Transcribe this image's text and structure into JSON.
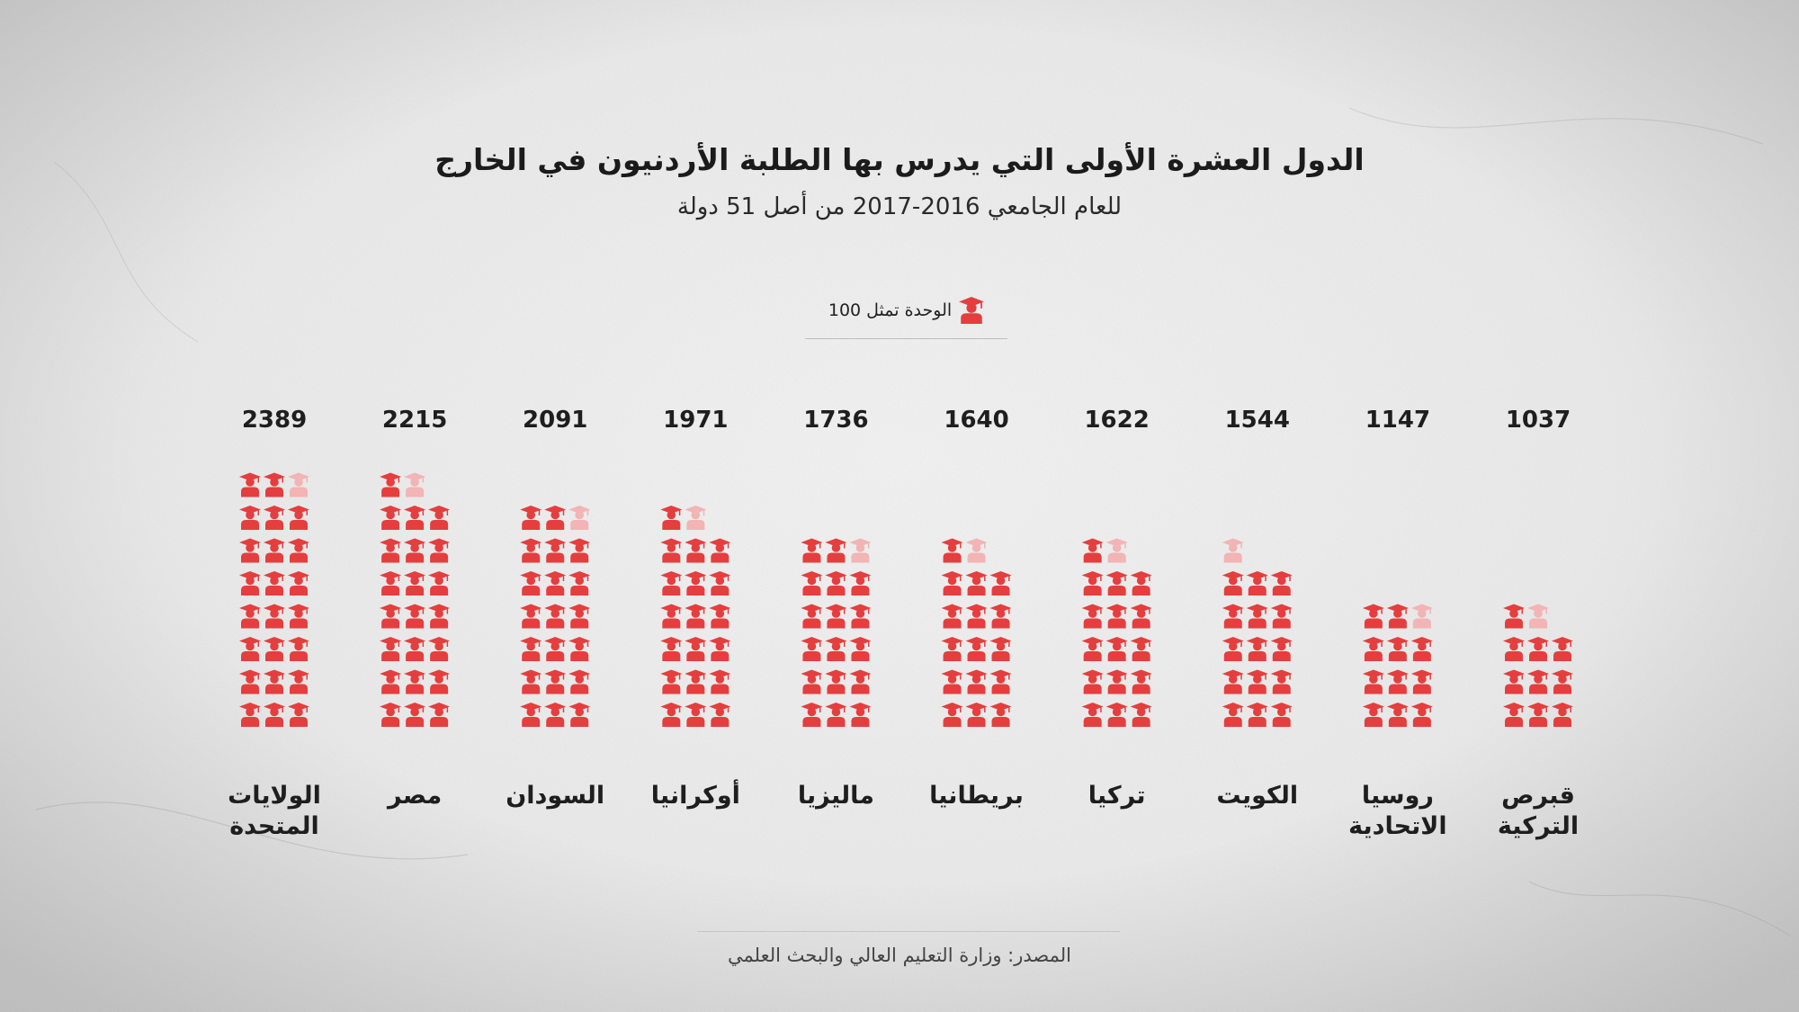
{
  "header": {
    "title": "الدول العشرة الأولى التي يدرس بها الطلبة الأردنيون في الخارج",
    "subtitle": "للعام الجامعي 2016-2017 من أصل 51 دولة"
  },
  "legend": {
    "text": "الوحدة تمثل 100",
    "icon": "graduate-icon"
  },
  "source": "المصدر: وزارة التعليم العالي والبحث العلمي",
  "colors": {
    "icon": "#e53e3e",
    "icon_faded": "#f2b4b4",
    "text": "#1e1e1e"
  },
  "chart_data": {
    "type": "pictograph",
    "unit_value": 100,
    "unit_label": "الوحدة تمثل 100",
    "categories": [
      {
        "label": [
          "الولايات",
          "المتحدة"
        ],
        "value": 2389
      },
      {
        "label": [
          "مصر"
        ],
        "value": 2215
      },
      {
        "label": [
          "السودان"
        ],
        "value": 2091
      },
      {
        "label": [
          "أوكرانيا"
        ],
        "value": 1971
      },
      {
        "label": [
          "ماليزيا"
        ],
        "value": 1736
      },
      {
        "label": [
          "بريطانيا"
        ],
        "value": 1640
      },
      {
        "label": [
          "تركيا"
        ],
        "value": 1622
      },
      {
        "label": [
          "الكويت"
        ],
        "value": 1544
      },
      {
        "label": [
          "روسيا",
          "الاتحادية"
        ],
        "value": 1147
      },
      {
        "label": [
          "قبرص",
          "التركية"
        ],
        "value": 1037
      }
    ]
  }
}
